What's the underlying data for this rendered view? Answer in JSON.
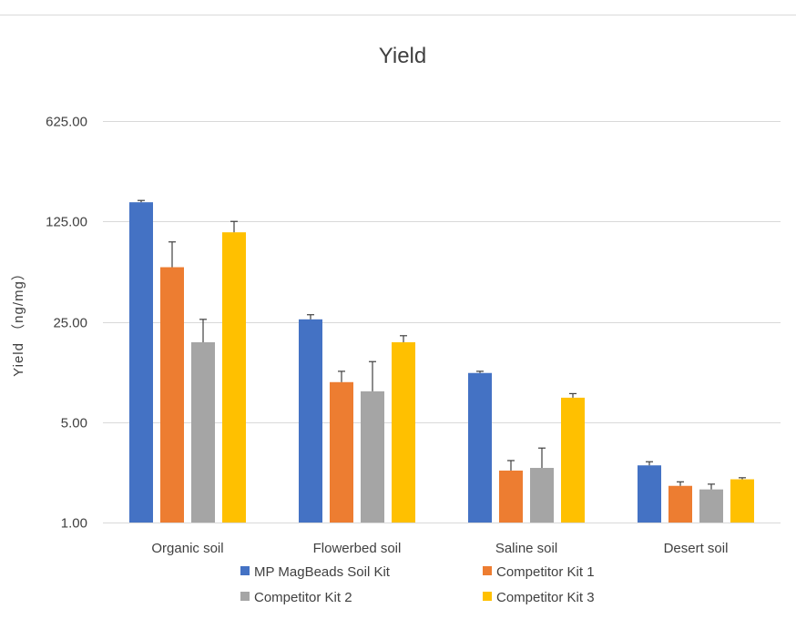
{
  "chart_data": {
    "type": "bar",
    "title": "Yield",
    "ylabel": "Yield （ng/mg）",
    "xlabel": "",
    "yscale": "log",
    "ylim": [
      1,
      625
    ],
    "yticks": [
      1,
      5,
      25,
      125,
      625
    ],
    "ytick_labels": [
      "1.00",
      "5.00",
      "25.00",
      "125.00",
      "625.00"
    ],
    "categories": [
      "Organic soil",
      "Flowerbed soil",
      "Saline soil",
      "Desert soil"
    ],
    "series": [
      {
        "name": "MP MagBeads Soil Kit",
        "color": "#4472C4",
        "values": [
          170,
          26,
          11,
          2.5
        ],
        "errors": [
          5,
          2,
          0.3,
          0.15
        ]
      },
      {
        "name": "Competitor Kit 1",
        "color": "#ED7D31",
        "values": [
          60,
          9.5,
          2.3,
          1.8
        ],
        "errors": [
          30,
          1.8,
          0.4,
          0.12
        ]
      },
      {
        "name": "Competitor Kit 2",
        "color": "#A5A5A5",
        "values": [
          18,
          8.2,
          2.4,
          1.7
        ],
        "errors": [
          8,
          5,
          0.9,
          0.15
        ]
      },
      {
        "name": "Competitor Kit 3",
        "color": "#FFC000",
        "values": [
          105,
          18,
          7.4,
          2.0
        ],
        "errors": [
          20,
          2,
          0.5,
          0.05
        ]
      }
    ],
    "grid": true,
    "legend": "bottom"
  }
}
